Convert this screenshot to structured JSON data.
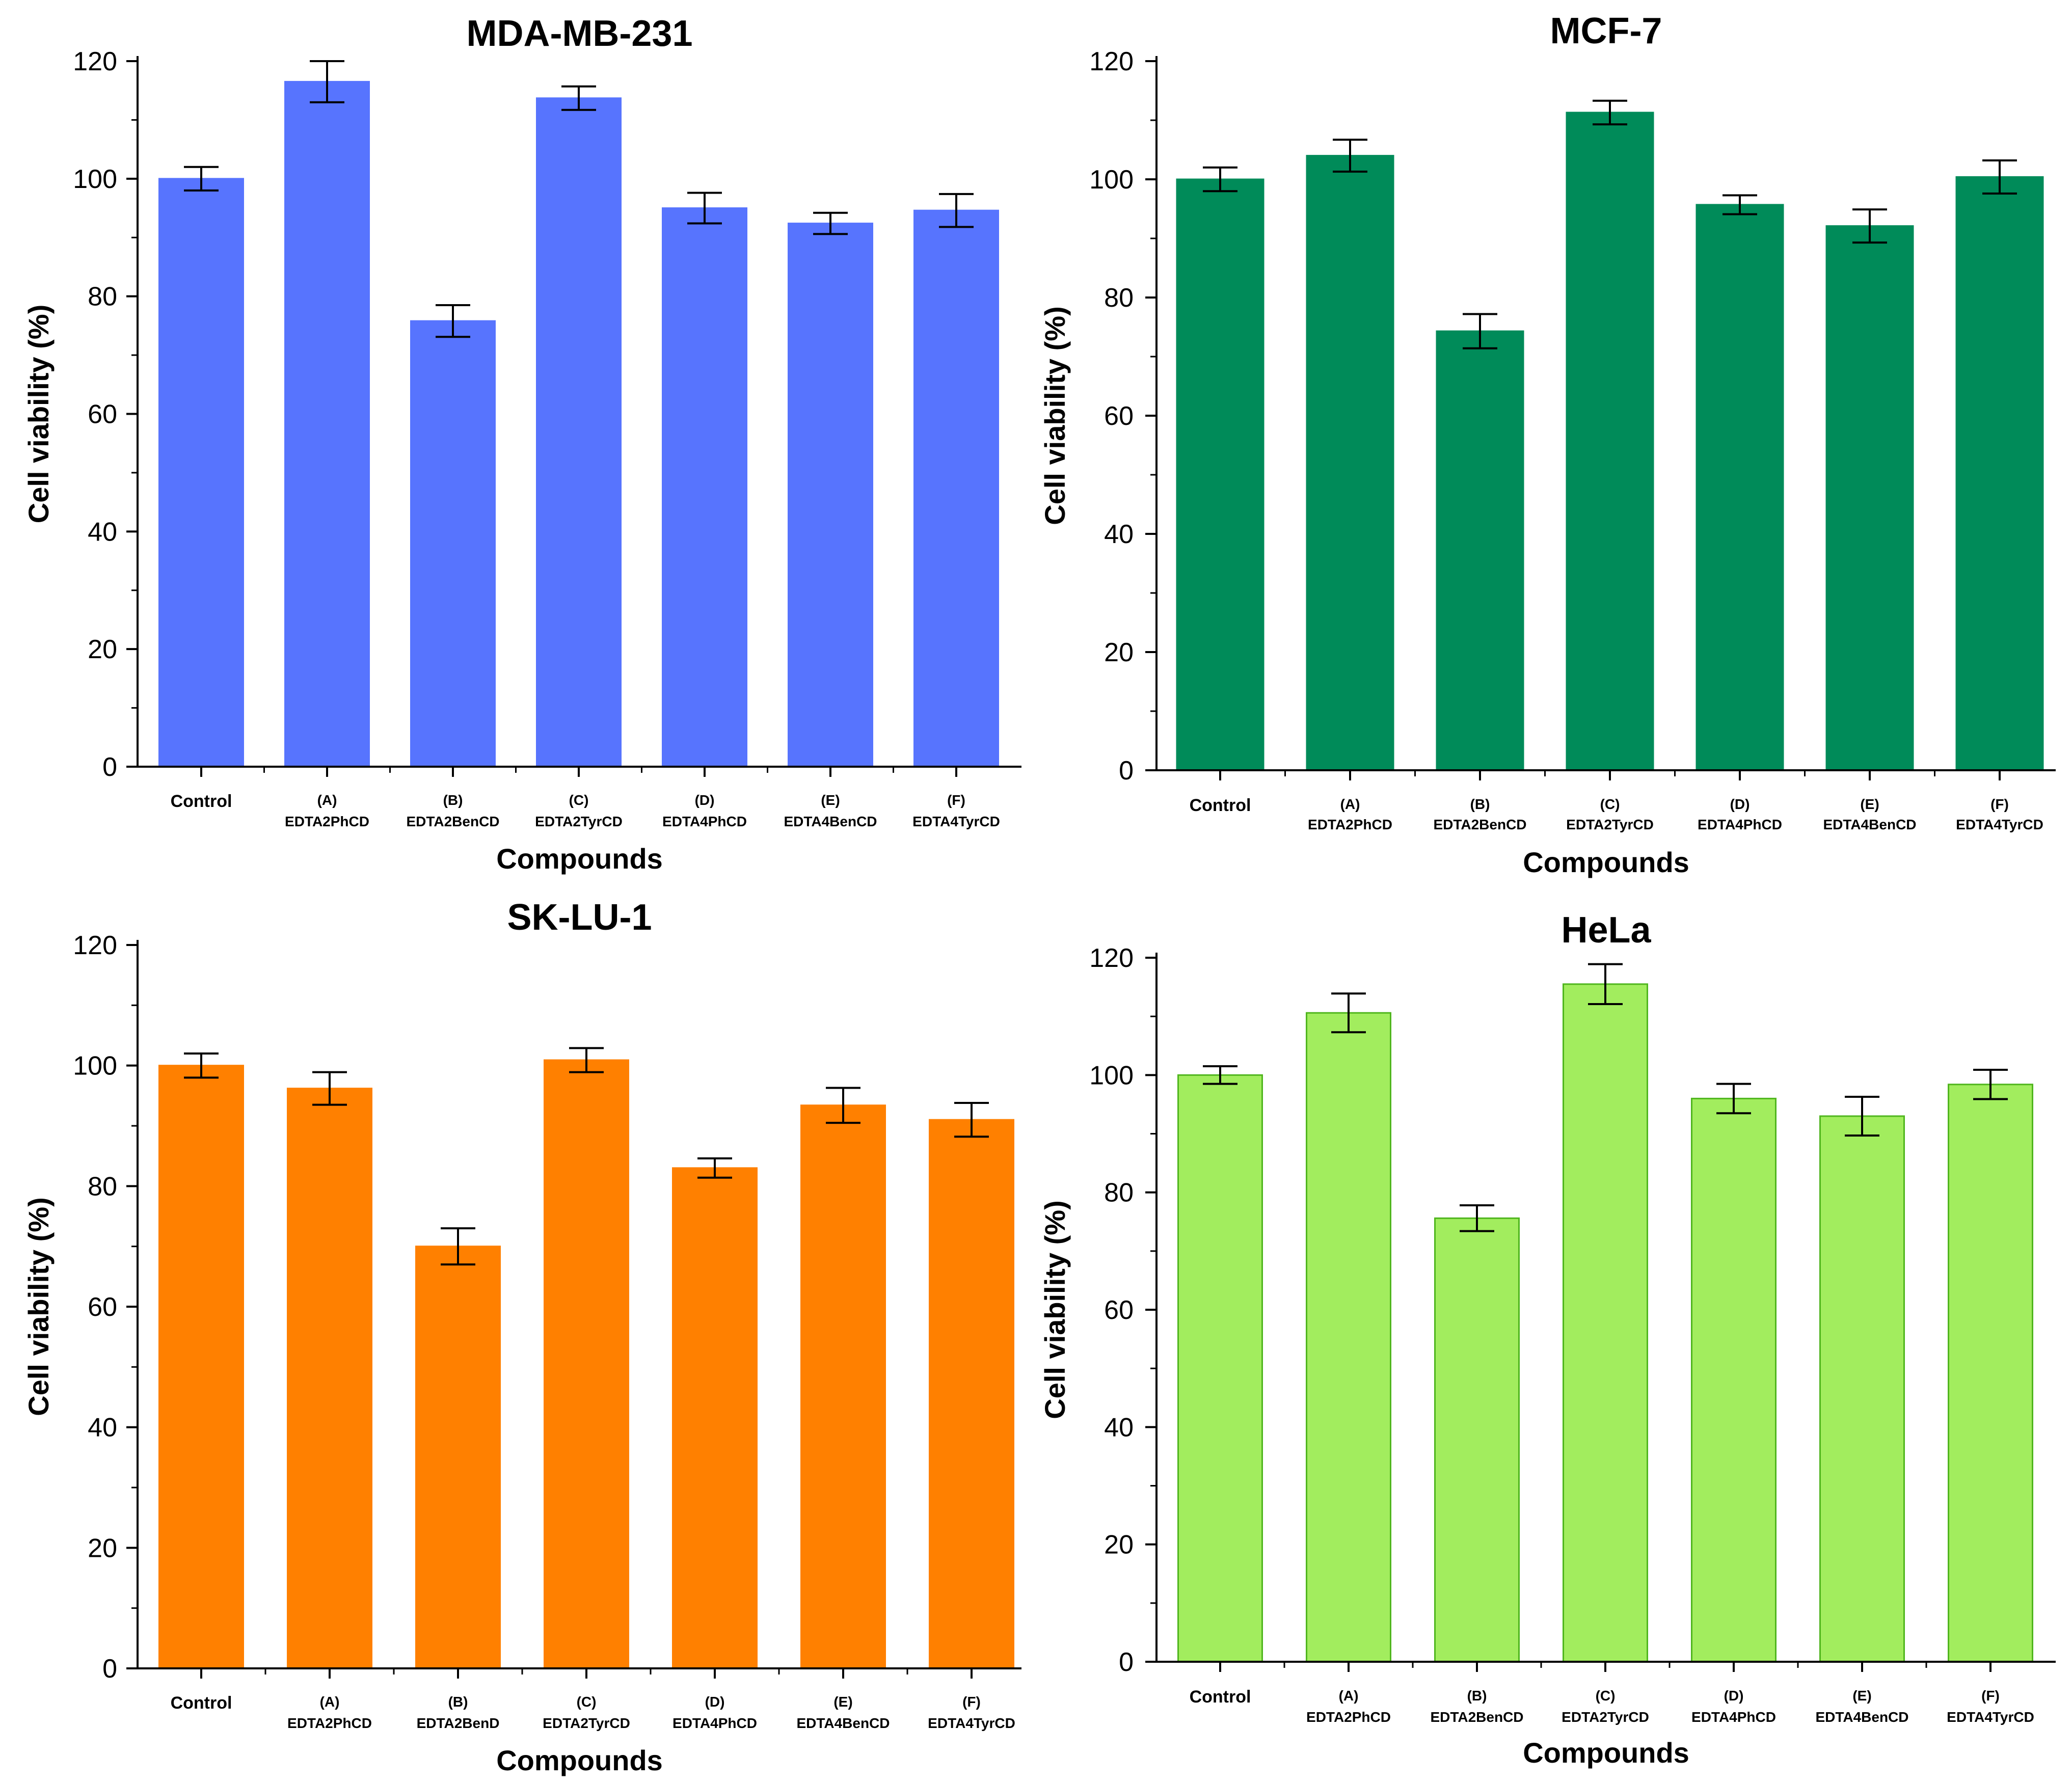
{
  "figure": {
    "x_label": "Compounds",
    "y_label": "Cell viability (%)"
  },
  "chart_data": [
    {
      "type": "bar",
      "title": "MDA-MB-231",
      "color": "#5774fe",
      "edge_color": "#5774fe",
      "xlabel": "Compounds",
      "ylabel": "Cell viability (%)",
      "ylim": [
        0,
        120
      ],
      "yticks": [
        "0",
        "20",
        "40",
        "60",
        "80",
        "100",
        "120"
      ],
      "categories": [
        {
          "code": "",
          "name": "Control"
        },
        {
          "code": "(A)",
          "name": "EDTA2PhCD"
        },
        {
          "code": "(B)",
          "name": "EDTA2BenCD"
        },
        {
          "code": "(C)",
          "name": "EDTA2TyrCD"
        },
        {
          "code": "(D)",
          "name": "EDTA4PhCD"
        },
        {
          "code": "(E)",
          "name": "EDTA4BenCD"
        },
        {
          "code": "(F)",
          "name": "EDTA4TyrCD"
        }
      ],
      "values": [
        100,
        116.5,
        75.8,
        113.7,
        95.0,
        92.4,
        94.6
      ],
      "errors": [
        2.0,
        3.5,
        2.7,
        2.0,
        2.6,
        1.8,
        2.8
      ]
    },
    {
      "type": "bar",
      "title": "MCF-7",
      "color": "#008b59",
      "edge_color": "#008b59",
      "xlabel": "Compounds",
      "ylabel": "Cell viability (%)",
      "ylim": [
        0,
        120
      ],
      "yticks": [
        "0",
        "20",
        "40",
        "60",
        "80",
        "100",
        "120"
      ],
      "categories": [
        {
          "code": "",
          "name": "Control"
        },
        {
          "code": "(A)",
          "name": "EDTA2PhCD"
        },
        {
          "code": "(B)",
          "name": "EDTA2BenCD"
        },
        {
          "code": "(C)",
          "name": "EDTA2TyrCD"
        },
        {
          "code": "(D)",
          "name": "EDTA4PhCD"
        },
        {
          "code": "(E)",
          "name": "EDTA4BenCD"
        },
        {
          "code": "(F)",
          "name": "EDTA4TyrCD"
        }
      ],
      "values": [
        100,
        104.0,
        74.3,
        111.3,
        95.7,
        92.1,
        100.4
      ],
      "errors": [
        2.0,
        2.7,
        2.9,
        2.0,
        1.6,
        2.8,
        2.8
      ]
    },
    {
      "type": "bar",
      "title": "SK-LU-1",
      "color": "#ff8000",
      "edge_color": "#ff8000",
      "xlabel": "Compounds",
      "ylabel": "Cell viability (%)",
      "ylim": [
        0,
        120
      ],
      "yticks": [
        "0",
        "20",
        "40",
        "60",
        "80",
        "100",
        "120"
      ],
      "categories": [
        {
          "code": "",
          "name": "Control"
        },
        {
          "code": "(A)",
          "name": "EDTA2PhCD"
        },
        {
          "code": "(B)",
          "name": "EDTA2BenD"
        },
        {
          "code": "(C)",
          "name": "EDTA2TyrCD"
        },
        {
          "code": "(D)",
          "name": "EDTA4PhCD"
        },
        {
          "code": "(E)",
          "name": "EDTA4BenCD"
        },
        {
          "code": "(F)",
          "name": "EDTA4TyrCD"
        }
      ],
      "values": [
        100,
        96.2,
        70.0,
        100.9,
        83.0,
        93.4,
        91.0
      ],
      "errors": [
        2.0,
        2.7,
        3.0,
        2.0,
        1.6,
        2.9,
        2.8
      ]
    },
    {
      "type": "bar",
      "title": "HeLa",
      "color": "#a2ed5e",
      "edge_color": "#50b61e",
      "xlabel": "Compounds",
      "ylabel": "Cell viability (%)",
      "ylim": [
        0,
        120
      ],
      "yticks": [
        "0",
        "20",
        "40",
        "60",
        "80",
        "100",
        "120"
      ],
      "categories": [
        {
          "code": "",
          "name": "Control"
        },
        {
          "code": "(A)",
          "name": "EDTA2PhCD"
        },
        {
          "code": "(B)",
          "name": "EDTA2BenCD"
        },
        {
          "code": "(C)",
          "name": "EDTA2TyrCD"
        },
        {
          "code": "(D)",
          "name": "EDTA4PhCD"
        },
        {
          "code": "(E)",
          "name": "EDTA4BenCD"
        },
        {
          "code": "(F)",
          "name": "EDTA4TyrCD"
        }
      ],
      "values": [
        100,
        110.6,
        75.6,
        115.5,
        96.0,
        93.0,
        98.4
      ],
      "errors": [
        1.5,
        3.3,
        2.2,
        3.4,
        2.5,
        3.3,
        2.5
      ]
    }
  ]
}
